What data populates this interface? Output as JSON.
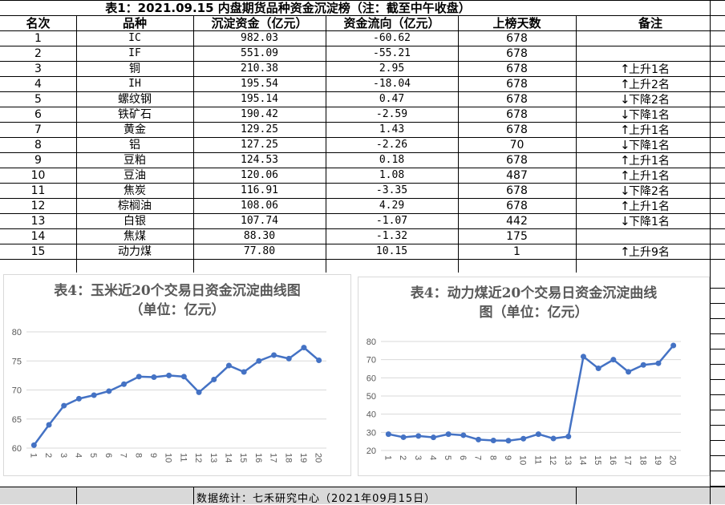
{
  "table": {
    "title": "表1：2021.09.15 内盘期货品种资金沉淀榜（注：截至中午收盘）",
    "headers": [
      "名次",
      "品种",
      "沉淀资金（亿元）",
      "资金流向（亿元）",
      "上榜天数",
      "备注"
    ],
    "rows": [
      {
        "rank": "1",
        "name": "IC",
        "capital": "982.03",
        "flow": "-60.62",
        "days": "678",
        "dir": "",
        "note": ""
      },
      {
        "rank": "2",
        "name": "IF",
        "capital": "551.09",
        "flow": "-55.21",
        "days": "678",
        "dir": "",
        "note": ""
      },
      {
        "rank": "3",
        "name": "铜",
        "capital": "210.38",
        "flow": "2.95",
        "days": "678",
        "dir": "↑",
        "note": "上升1名"
      },
      {
        "rank": "4",
        "name": "IH",
        "capital": "195.54",
        "flow": "-18.04",
        "days": "678",
        "dir": "↑",
        "note": "上升2名"
      },
      {
        "rank": "5",
        "name": "螺纹钢",
        "capital": "195.14",
        "flow": "0.47",
        "days": "678",
        "dir": "↓",
        "note": "下降2名"
      },
      {
        "rank": "6",
        "name": "铁矿石",
        "capital": "190.42",
        "flow": "-2.59",
        "days": "678",
        "dir": "↓",
        "note": "下降1名"
      },
      {
        "rank": "7",
        "name": "黄金",
        "capital": "129.25",
        "flow": "1.43",
        "days": "678",
        "dir": "↑",
        "note": "上升1名"
      },
      {
        "rank": "8",
        "name": "铝",
        "capital": "127.25",
        "flow": "-2.26",
        "days": "70",
        "dir": "↓",
        "note": "下降1名"
      },
      {
        "rank": "9",
        "name": "豆粕",
        "capital": "124.53",
        "flow": "0.18",
        "days": "678",
        "dir": "↑",
        "note": "上升1名"
      },
      {
        "rank": "10",
        "name": "豆油",
        "capital": "120.06",
        "flow": "1.08",
        "days": "487",
        "dir": "↑",
        "note": "上升1名"
      },
      {
        "rank": "11",
        "name": "焦炭",
        "capital": "116.91",
        "flow": "-3.35",
        "days": "678",
        "dir": "↓",
        "note": "下降2名"
      },
      {
        "rank": "12",
        "name": "棕榈油",
        "capital": "108.06",
        "flow": "4.29",
        "days": "678",
        "dir": "↑",
        "note": "上升1名"
      },
      {
        "rank": "13",
        "name": "白银",
        "capital": "107.74",
        "flow": "-1.07",
        "days": "442",
        "dir": "↓",
        "note": "下降1名"
      },
      {
        "rank": "14",
        "name": "焦煤",
        "capital": "88.30",
        "flow": "-1.32",
        "days": "175",
        "dir": "",
        "note": ""
      },
      {
        "rank": "15",
        "name": "动力煤",
        "capital": "77.80",
        "flow": "10.15",
        "days": "1",
        "dir": "↑",
        "note": "上升9名"
      }
    ]
  },
  "chart_data": [
    {
      "type": "line",
      "title": "表4：玉米近20个交易日资金沉淀曲线图",
      "subtitle": "（单位：亿元）",
      "x": [
        "1",
        "2",
        "3",
        "4",
        "5",
        "6",
        "7",
        "8",
        "9",
        "10",
        "11",
        "12",
        "13",
        "14",
        "15",
        "16",
        "17",
        "18",
        "19",
        "20"
      ],
      "values": [
        60.5,
        64.0,
        67.3,
        68.5,
        69.1,
        69.8,
        71.0,
        72.3,
        72.2,
        72.5,
        72.3,
        69.6,
        71.8,
        74.2,
        73.1,
        75.0,
        76.0,
        75.4,
        77.3,
        75.1
      ],
      "ylim": [
        60,
        80
      ],
      "yticks": [
        60,
        65,
        70,
        75,
        80
      ],
      "color": "#4472c4",
      "grid": true
    },
    {
      "type": "line",
      "title": "表4：动力煤近20个交易日资金沉淀曲线",
      "subtitle": "图（单位：亿元）",
      "x": [
        "1",
        "2",
        "3",
        "4",
        "5",
        "6",
        "7",
        "8",
        "9",
        "10",
        "11",
        "12",
        "13",
        "14",
        "15",
        "16",
        "17",
        "18",
        "19",
        "20"
      ],
      "values": [
        29.0,
        27.3,
        28.0,
        27.2,
        29.0,
        28.4,
        26.0,
        25.5,
        25.4,
        26.5,
        29.0,
        26.6,
        27.7,
        71.7,
        65.2,
        70.0,
        63.3,
        67.1,
        68.0,
        77.8
      ],
      "ylim": [
        20,
        80
      ],
      "yticks": [
        20,
        30,
        40,
        50,
        60,
        70,
        80
      ],
      "color": "#4472c4",
      "grid": true
    }
  ],
  "footer": "数据统计：七禾研究中心（2021年09月15日）"
}
